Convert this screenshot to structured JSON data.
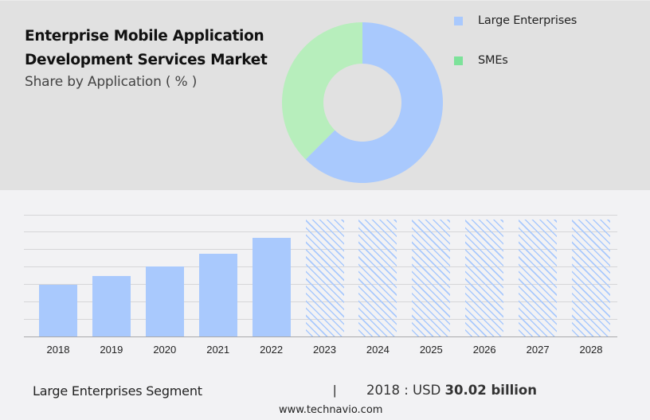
{
  "header": {
    "title_line1": "Enterprise Mobile Application",
    "title_line2": "Development Services Market",
    "subtitle": "Share by Application ( % )"
  },
  "legend": {
    "items": [
      {
        "label": "Large Enterprises",
        "color": "#a9c9fd"
      },
      {
        "label": "SMEs",
        "color": "#7de29a"
      }
    ]
  },
  "footer": {
    "segment": "Large Enterprises Segment",
    "separator": "|",
    "value_prefix": "2018 : USD",
    "value": "30.02 billion",
    "url": "www.technavio.com"
  },
  "chart_data": [
    {
      "type": "pie",
      "variant": "donut",
      "title": "Share by Application ( % )",
      "categories": [
        "Large Enterprises",
        "SMEs"
      ],
      "values": [
        62.5,
        37.5
      ],
      "colors": [
        "#a9c9fd",
        "#b7eebc"
      ],
      "legend_position": "right"
    },
    {
      "type": "bar",
      "title": "Large Enterprises Segment",
      "categories": [
        "2018",
        "2019",
        "2020",
        "2021",
        "2022",
        "2023",
        "2024",
        "2025",
        "2026",
        "2027",
        "2028"
      ],
      "values": [
        30.02,
        34.9,
        40.6,
        47.9,
        57.1,
        null,
        null,
        null,
        null,
        null,
        null
      ],
      "forecast_categories": [
        "2023",
        "2024",
        "2025",
        "2026",
        "2027",
        "2028"
      ],
      "unit": "USD billion",
      "xlabel": "",
      "ylabel": "",
      "ylim": [
        0,
        70
      ],
      "grid": true,
      "annotation": "2018 : USD 30.02 billion",
      "color": "#a9c9fd"
    }
  ]
}
